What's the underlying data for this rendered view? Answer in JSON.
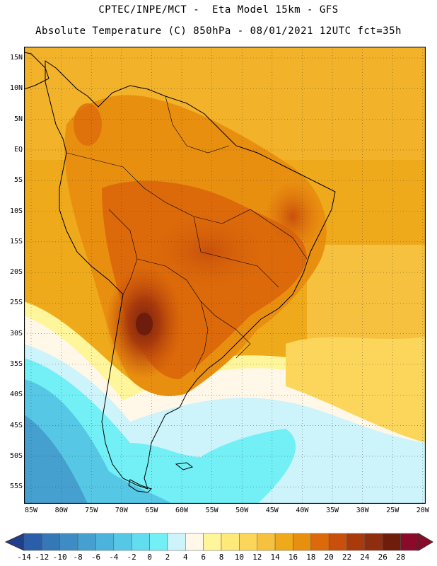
{
  "header": {
    "line1": "CPTEC/INPE/MCT -  Eta Model 15km - GFS",
    "line2": "Absolute Temperature (C) 850hPa - 08/01/2021 12UTC fct=35h"
  },
  "map": {
    "lat_labels": [
      "15N",
      "10N",
      "5N",
      "EQ",
      "5S",
      "10S",
      "15S",
      "20S",
      "25S",
      "30S",
      "35S",
      "40S",
      "45S",
      "50S",
      "55S"
    ],
    "lon_labels": [
      "85W",
      "80W",
      "75W",
      "70W",
      "65W",
      "60W",
      "55W",
      "50W",
      "45W",
      "40W",
      "35W",
      "30W",
      "25W",
      "20W"
    ]
  },
  "colorbar": {
    "labels": [
      "-14",
      "-12",
      "-10",
      "-8",
      "-6",
      "-4",
      "-2",
      "0",
      "2",
      "4",
      "6",
      "8",
      "10",
      "12",
      "14",
      "16",
      "18",
      "20",
      "22",
      "24",
      "26",
      "28"
    ],
    "colors": [
      "#1f3f8c",
      "#2a5ea8",
      "#3578b8",
      "#3f8cc4",
      "#45a0cf",
      "#4cb4dc",
      "#56c8e6",
      "#62dcef",
      "#72f0f5",
      "#cdf3fb",
      "#fff8e8",
      "#fff59a",
      "#ffe97a",
      "#fcd65a",
      "#f6c13e",
      "#efaa1c",
      "#e98f10",
      "#dc6a0a",
      "#c8500c",
      "#a83a0c",
      "#8e2d10",
      "#6e1c0c",
      "#8a0a2a"
    ]
  }
}
